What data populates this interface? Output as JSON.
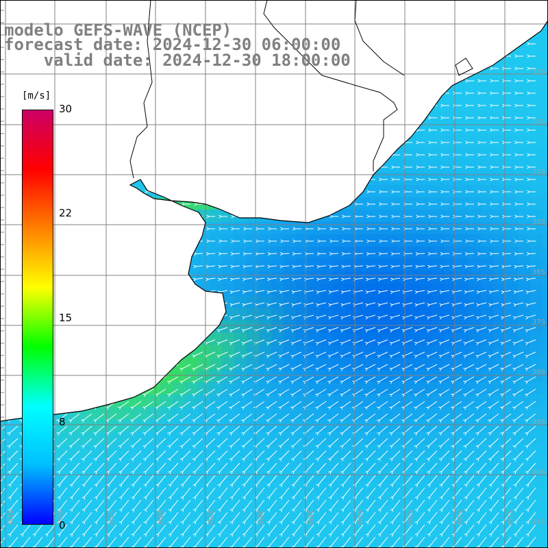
{
  "title": {
    "line1": "modelo GEFS-WAVE (NCEP)",
    "line2": "forecast date: 2024-12-30 06:00:00",
    "line3": "    valid date: 2024-12-30 18:00:00"
  },
  "colorbar": {
    "unit": "[m/s]",
    "labels": [
      "30",
      "22",
      "15",
      "8",
      "0"
    ],
    "min": 0,
    "max": 30,
    "colors": [
      "#0000ff",
      "#00bfff",
      "#00ffff",
      "#00ff00",
      "#ffff00",
      "#ff8000",
      "#ff0000",
      "#cc0066"
    ]
  },
  "lat_labels": [
    "32S",
    "33S",
    "34S",
    "35S",
    "36S",
    "37S",
    "38S",
    "39S",
    "40S",
    "41S"
  ],
  "lon_labels": [
    "61W",
    "60W",
    "59W",
    "58W",
    "57W",
    "56W",
    "55W",
    "54W",
    "53W",
    "52W",
    "51W"
  ],
  "field": {
    "wind_direction": "from the east / northeast",
    "sea_fill": "#1fc8f0"
  }
}
